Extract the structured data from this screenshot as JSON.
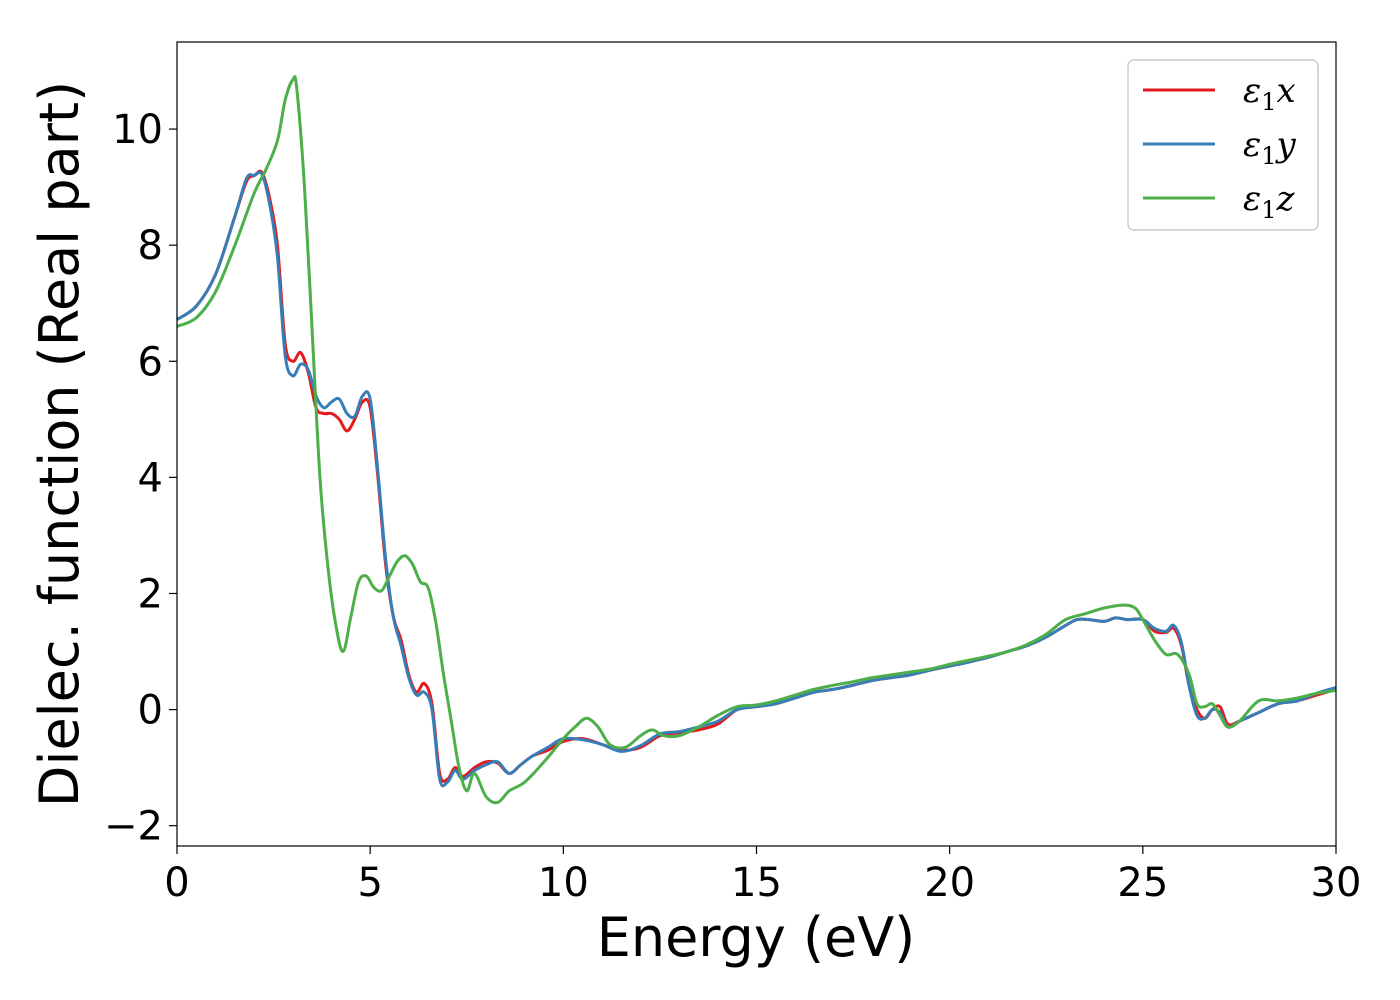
{
  "chart_data": {
    "type": "line",
    "xlabel": "Energy (eV)",
    "ylabel": "Dielec. function (Real part)",
    "xlim": [
      0,
      30
    ],
    "ylim": [
      -2.35,
      11.5
    ],
    "xticks": [
      0,
      5,
      10,
      15,
      20,
      25,
      30
    ],
    "yticks": [
      -2,
      0,
      2,
      4,
      6,
      8,
      10
    ],
    "xtick_labels": [
      "0",
      "5",
      "10",
      "15",
      "20",
      "25",
      "30"
    ],
    "ytick_labels": [
      "−2",
      "0",
      "2",
      "4",
      "6",
      "8",
      "10"
    ],
    "grid": false,
    "legend_position": "top-right",
    "series": [
      {
        "name": "ε₁x",
        "legend_main": "ε",
        "legend_sub": "1",
        "legend_tail": "x",
        "color": "#e41a1c",
        "x": [
          0,
          0.5,
          1.0,
          1.5,
          1.8,
          2.0,
          2.2,
          2.4,
          2.6,
          2.8,
          3.0,
          3.2,
          3.4,
          3.6,
          3.8,
          4.0,
          4.2,
          4.4,
          4.6,
          4.8,
          5.0,
          5.2,
          5.4,
          5.6,
          5.8,
          6.0,
          6.2,
          6.4,
          6.6,
          6.8,
          7.0,
          7.2,
          7.4,
          7.7,
          8.0,
          8.3,
          8.6,
          8.9,
          9.2,
          9.6,
          10.0,
          10.5,
          11.0,
          11.5,
          12.0,
          12.5,
          13.0,
          13.5,
          14.0,
          14.5,
          15.0,
          15.5,
          16.0,
          16.5,
          17.0,
          17.5,
          18.0,
          18.5,
          19.0,
          19.5,
          20.0,
          20.5,
          21.0,
          21.5,
          22.0,
          22.5,
          23.0,
          23.3,
          23.6,
          24.0,
          24.3,
          24.6,
          25.0,
          25.3,
          25.6,
          25.8,
          26.0,
          26.2,
          26.4,
          26.6,
          26.8,
          27.0,
          27.2,
          27.5,
          28.0,
          28.5,
          29.0,
          29.5,
          30.0
        ],
        "y": [
          6.72,
          6.95,
          7.5,
          8.5,
          9.1,
          9.2,
          9.25,
          8.8,
          8.0,
          6.3,
          6.0,
          6.15,
          5.8,
          5.2,
          5.1,
          5.1,
          5.0,
          4.8,
          5.0,
          5.3,
          5.2,
          4.0,
          2.5,
          1.6,
          1.2,
          0.6,
          0.3,
          0.45,
          0.1,
          -1.1,
          -1.2,
          -1.0,
          -1.15,
          -1.0,
          -0.9,
          -0.92,
          -1.1,
          -0.95,
          -0.8,
          -0.7,
          -0.55,
          -0.5,
          -0.6,
          -0.7,
          -0.65,
          -0.45,
          -0.4,
          -0.35,
          -0.25,
          0.0,
          0.05,
          0.1,
          0.2,
          0.3,
          0.35,
          0.42,
          0.5,
          0.55,
          0.6,
          0.68,
          0.75,
          0.82,
          0.9,
          1.0,
          1.1,
          1.25,
          1.45,
          1.55,
          1.55,
          1.52,
          1.58,
          1.55,
          1.55,
          1.35,
          1.33,
          1.4,
          1.1,
          0.4,
          0.0,
          -0.15,
          0.0,
          0.05,
          -0.25,
          -0.2,
          -0.05,
          0.1,
          0.15,
          0.25,
          0.35
        ]
      },
      {
        "name": "ε₁y",
        "legend_main": "ε",
        "legend_sub": "1",
        "legend_tail": "y",
        "color": "#377eb8",
        "x": [
          0,
          0.5,
          1.0,
          1.5,
          1.8,
          2.0,
          2.2,
          2.4,
          2.6,
          2.8,
          3.0,
          3.2,
          3.4,
          3.6,
          3.8,
          4.0,
          4.2,
          4.4,
          4.6,
          4.8,
          5.0,
          5.2,
          5.4,
          5.6,
          5.8,
          6.0,
          6.2,
          6.4,
          6.6,
          6.8,
          7.0,
          7.2,
          7.4,
          7.7,
          8.0,
          8.3,
          8.6,
          8.9,
          9.2,
          9.6,
          10.0,
          10.5,
          11.0,
          11.5,
          12.0,
          12.5,
          13.0,
          13.5,
          14.0,
          14.5,
          15.0,
          15.5,
          16.0,
          16.5,
          17.0,
          17.5,
          18.0,
          18.5,
          19.0,
          19.5,
          20.0,
          20.5,
          21.0,
          21.5,
          22.0,
          22.5,
          23.0,
          23.3,
          23.6,
          24.0,
          24.3,
          24.6,
          25.0,
          25.3,
          25.6,
          25.8,
          26.0,
          26.2,
          26.4,
          26.6,
          26.8,
          27.0,
          27.2,
          27.5,
          28.0,
          28.5,
          29.0,
          29.5,
          30.0
        ],
        "y": [
          6.72,
          6.95,
          7.5,
          8.5,
          9.15,
          9.2,
          9.22,
          8.7,
          7.8,
          6.1,
          5.75,
          5.95,
          5.85,
          5.4,
          5.2,
          5.3,
          5.35,
          5.1,
          5.05,
          5.4,
          5.35,
          4.1,
          2.6,
          1.6,
          1.1,
          0.55,
          0.25,
          0.3,
          0.0,
          -1.2,
          -1.25,
          -1.05,
          -1.2,
          -1.05,
          -0.95,
          -0.9,
          -1.1,
          -0.95,
          -0.8,
          -0.65,
          -0.5,
          -0.52,
          -0.6,
          -0.72,
          -0.62,
          -0.42,
          -0.38,
          -0.3,
          -0.2,
          0.0,
          0.05,
          0.1,
          0.2,
          0.3,
          0.35,
          0.42,
          0.5,
          0.55,
          0.6,
          0.68,
          0.75,
          0.82,
          0.9,
          1.0,
          1.1,
          1.25,
          1.45,
          1.55,
          1.55,
          1.52,
          1.58,
          1.55,
          1.55,
          1.4,
          1.35,
          1.45,
          1.15,
          0.4,
          -0.1,
          -0.15,
          0.0,
          -0.05,
          -0.3,
          -0.2,
          -0.05,
          0.1,
          0.15,
          0.28,
          0.38
        ]
      },
      {
        "name": "ε₁z",
        "legend_main": "ε",
        "legend_sub": "1",
        "legend_tail": "z",
        "color": "#4daf4a",
        "x": [
          0,
          0.5,
          1.0,
          1.5,
          2.0,
          2.3,
          2.6,
          2.8,
          3.0,
          3.1,
          3.3,
          3.5,
          3.7,
          3.9,
          4.1,
          4.3,
          4.5,
          4.7,
          4.9,
          5.1,
          5.3,
          5.5,
          5.7,
          5.9,
          6.1,
          6.3,
          6.5,
          6.7,
          6.9,
          7.1,
          7.3,
          7.5,
          7.7,
          8.0,
          8.3,
          8.6,
          9.0,
          9.5,
          10.0,
          10.3,
          10.6,
          10.9,
          11.2,
          11.6,
          12.0,
          12.3,
          12.6,
          13.0,
          13.5,
          14.0,
          14.5,
          15.0,
          15.5,
          16.0,
          16.5,
          17.0,
          17.5,
          18.0,
          18.5,
          19.0,
          19.5,
          20.0,
          20.5,
          21.0,
          21.5,
          22.0,
          22.5,
          23.0,
          23.5,
          24.0,
          24.5,
          24.8,
          25.0,
          25.3,
          25.6,
          25.9,
          26.2,
          26.4,
          26.6,
          26.8,
          27.0,
          27.2,
          27.5,
          28.0,
          28.5,
          29.0,
          29.5,
          30.0
        ],
        "y": [
          6.6,
          6.75,
          7.2,
          8.0,
          8.9,
          9.3,
          9.8,
          10.5,
          10.85,
          10.7,
          9.0,
          6.5,
          4.0,
          2.5,
          1.5,
          1.0,
          1.6,
          2.2,
          2.3,
          2.1,
          2.05,
          2.3,
          2.55,
          2.65,
          2.5,
          2.2,
          2.1,
          1.5,
          0.6,
          -0.2,
          -1.0,
          -1.4,
          -1.1,
          -1.5,
          -1.6,
          -1.4,
          -1.25,
          -0.9,
          -0.5,
          -0.3,
          -0.15,
          -0.3,
          -0.6,
          -0.65,
          -0.45,
          -0.35,
          -0.45,
          -0.45,
          -0.3,
          -0.1,
          0.05,
          0.08,
          0.15,
          0.25,
          0.35,
          0.42,
          0.48,
          0.55,
          0.6,
          0.65,
          0.7,
          0.78,
          0.85,
          0.92,
          1.0,
          1.12,
          1.3,
          1.55,
          1.65,
          1.75,
          1.8,
          1.75,
          1.55,
          1.2,
          0.95,
          0.95,
          0.6,
          0.1,
          0.05,
          0.1,
          -0.1,
          -0.3,
          -0.2,
          0.15,
          0.15,
          0.2,
          0.28,
          0.33
        ]
      }
    ]
  }
}
